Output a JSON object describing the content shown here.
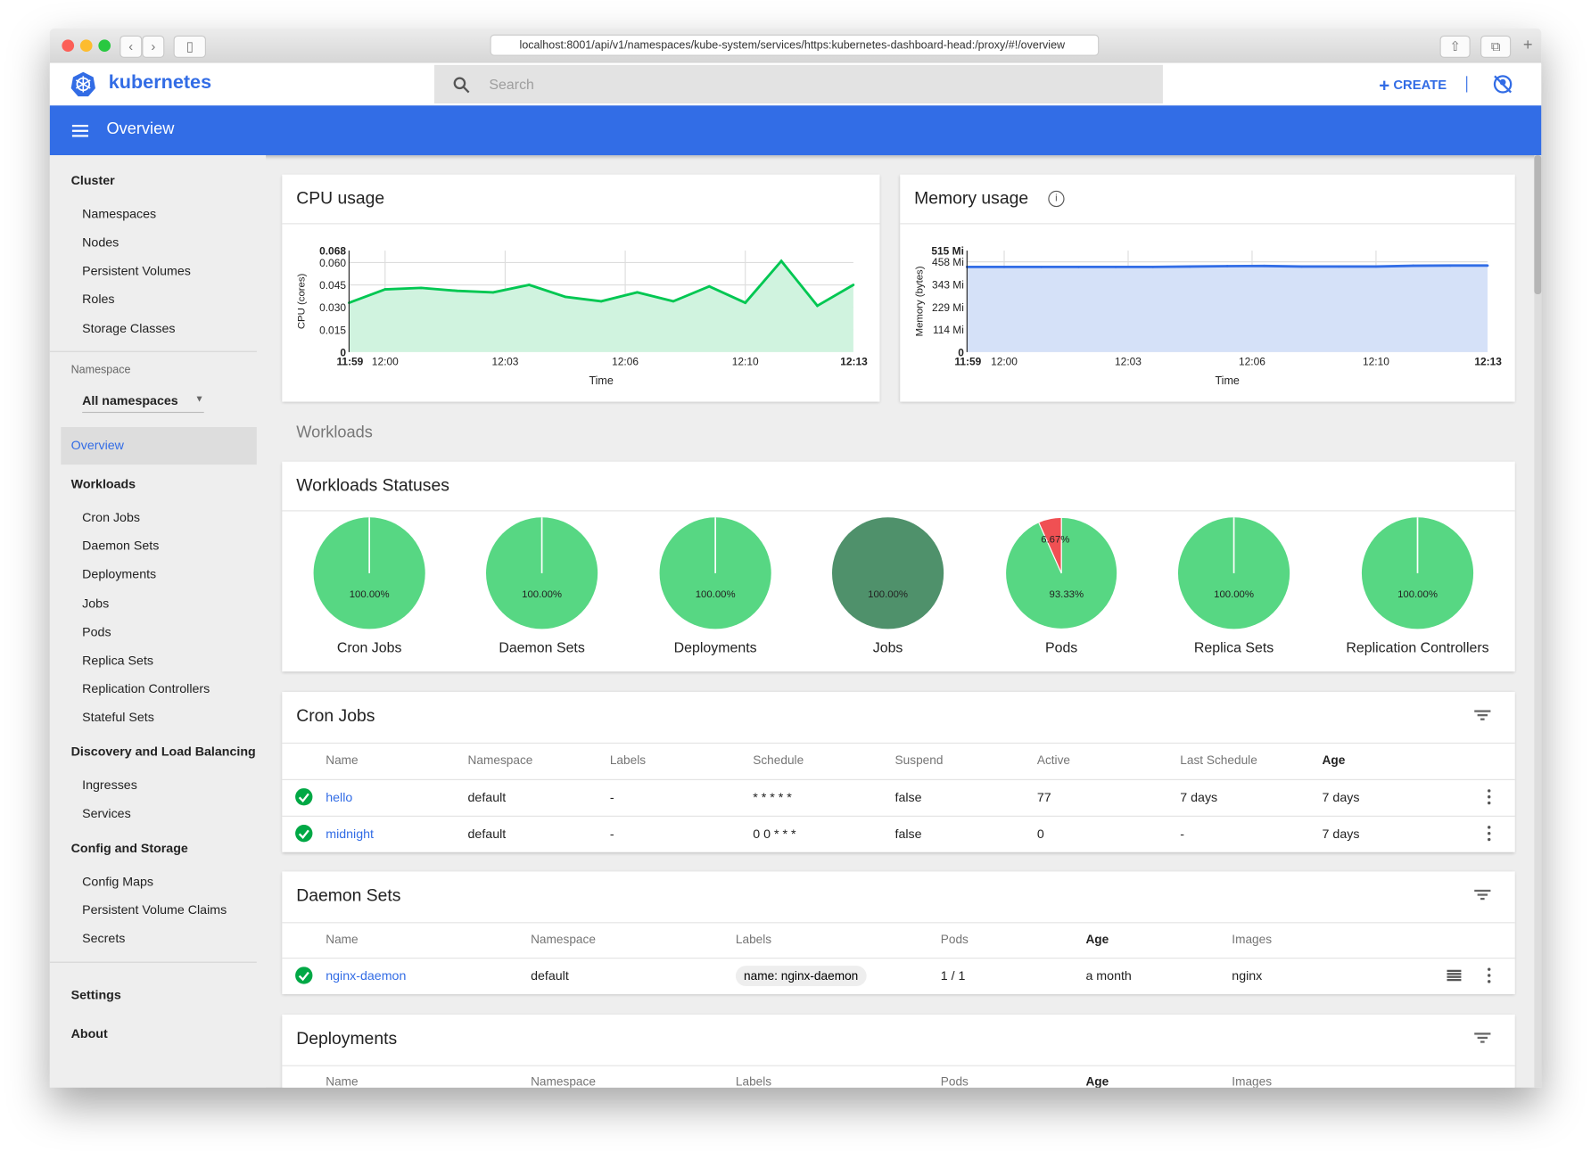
{
  "browser": {
    "url": "localhost:8001/api/v1/namespaces/kube-system/services/https:kubernetes-dashboard-head:/proxy/#!/overview"
  },
  "header": {
    "logo": "kubernetes",
    "search_placeholder": "Search",
    "create_label": "CREATE",
    "page_title": "Overview"
  },
  "sidebar": {
    "cluster": {
      "title": "Cluster",
      "items": [
        "Namespaces",
        "Nodes",
        "Persistent Volumes",
        "Roles",
        "Storage Classes"
      ]
    },
    "namespace": {
      "label": "Namespace",
      "selected": "All namespaces"
    },
    "overview": "Overview",
    "workloads": {
      "title": "Workloads",
      "items": [
        "Cron Jobs",
        "Daemon Sets",
        "Deployments",
        "Jobs",
        "Pods",
        "Replica Sets",
        "Replication Controllers",
        "Stateful Sets"
      ]
    },
    "discovery": {
      "title": "Discovery and Load Balancing",
      "items": [
        "Ingresses",
        "Services"
      ]
    },
    "config": {
      "title": "Config and Storage",
      "items": [
        "Config Maps",
        "Persistent Volume Claims",
        "Secrets"
      ]
    },
    "settings": "Settings",
    "about": "About"
  },
  "chart_data": [
    {
      "type": "area",
      "title": "CPU usage",
      "xlabel": "Time",
      "ylabel": "CPU (cores)",
      "color": "#00c752",
      "fill": "#d0f3df",
      "x": [
        "11:59",
        "12:00",
        "12:01",
        "12:02",
        "12:03",
        "12:04",
        "12:05",
        "12:06",
        "12:07",
        "12:08",
        "12:09",
        "12:10",
        "12:11",
        "12:12",
        "12:13"
      ],
      "values": [
        0.033,
        0.042,
        0.043,
        0.041,
        0.04,
        0.045,
        0.037,
        0.034,
        0.04,
        0.034,
        0.044,
        0.033,
        0.061,
        0.031,
        0.045
      ],
      "ylim": [
        0,
        0.068
      ],
      "yticks": [
        "0",
        "0.015",
        "0.030",
        "0.045",
        "0.060",
        "0.068"
      ],
      "ytick_values": [
        0,
        0.015,
        0.03,
        0.045,
        0.06,
        0.068
      ],
      "xticks": [
        "11:59",
        "12:00",
        "12:03",
        "12:06",
        "12:10",
        "12:13"
      ],
      "xtick_values": [
        "11:59:00",
        "12:00:00",
        "12:03:20",
        "12:06:40",
        "12:10:00",
        "12:13:00"
      ],
      "grid": true
    },
    {
      "type": "area",
      "title": "Memory usage",
      "xlabel": "Time",
      "ylabel": "Memory (bytes)",
      "color": "#326de6",
      "fill": "#d5e1f8",
      "x": [
        "11:59",
        "12:00",
        "12:01",
        "12:02",
        "12:03",
        "12:04",
        "12:05",
        "12:06",
        "12:07",
        "12:08",
        "12:09",
        "12:10",
        "12:11",
        "12:12",
        "12:13"
      ],
      "values": [
        432,
        432,
        432,
        432,
        432,
        432,
        434,
        436,
        437,
        434,
        434,
        434,
        438,
        439,
        439
      ],
      "ylim": [
        0,
        515
      ],
      "yticks": [
        "0",
        "114 Mi",
        "229 Mi",
        "343 Mi",
        "458 Mi",
        "515 Mi"
      ],
      "ytick_values": [
        0,
        114,
        229,
        343,
        458,
        515
      ],
      "xticks": [
        "11:59",
        "12:00",
        "12:03",
        "12:06",
        "12:10",
        "12:13"
      ],
      "xtick_values": [
        "11:59:00",
        "12:00:00",
        "12:03:20",
        "12:06:40",
        "12:10:00",
        "12:13:00"
      ],
      "grid": true
    }
  ],
  "workloads_section": "Workloads",
  "statuses": {
    "title": "Workloads Statuses",
    "colors": {
      "running": "#57d783",
      "succeeded": "#4f916b",
      "failed": "#f05053"
    },
    "items": [
      {
        "name": "Cron Jobs",
        "slices": [
          {
            "status": "running",
            "value": 100,
            "label": "100.00%"
          }
        ]
      },
      {
        "name": "Daemon Sets",
        "slices": [
          {
            "status": "running",
            "value": 100,
            "label": "100.00%"
          }
        ]
      },
      {
        "name": "Deployments",
        "slices": [
          {
            "status": "running",
            "value": 100,
            "label": "100.00%"
          }
        ]
      },
      {
        "name": "Jobs",
        "slices": [
          {
            "status": "succeeded",
            "value": 100,
            "label": "100.00%"
          }
        ]
      },
      {
        "name": "Pods",
        "slices": [
          {
            "status": "running",
            "value": 93.33,
            "label": "93.33%"
          },
          {
            "status": "failed",
            "value": 6.67,
            "label": "6.67%"
          }
        ]
      },
      {
        "name": "Replica Sets",
        "slices": [
          {
            "status": "running",
            "value": 100,
            "label": "100.00%"
          }
        ]
      },
      {
        "name": "Replication Controllers",
        "slices": [
          {
            "status": "running",
            "value": 100,
            "label": "100.00%"
          }
        ]
      }
    ]
  },
  "cronjobs": {
    "title": "Cron Jobs",
    "columns": [
      "Name",
      "Namespace",
      "Labels",
      "Schedule",
      "Suspend",
      "Active",
      "Last Schedule",
      "Age"
    ],
    "rows": [
      [
        "hello",
        "default",
        "-",
        "* * * * *",
        "false",
        "77",
        "7 days",
        "7 days"
      ],
      [
        "midnight",
        "default",
        "-",
        "0 0 * * *",
        "false",
        "0",
        "-",
        "7 days"
      ]
    ]
  },
  "daemonsets": {
    "title": "Daemon Sets",
    "columns": [
      "Name",
      "Namespace",
      "Labels",
      "Pods",
      "Age",
      "Images"
    ],
    "rows": [
      [
        "nginx-daemon",
        "default",
        "name: nginx-daemon",
        "1 / 1",
        "a month",
        "nginx"
      ]
    ]
  },
  "deployments": {
    "title": "Deployments",
    "columns": [
      "Name",
      "Namespace",
      "Labels",
      "Pods",
      "Age",
      "Images"
    ]
  }
}
